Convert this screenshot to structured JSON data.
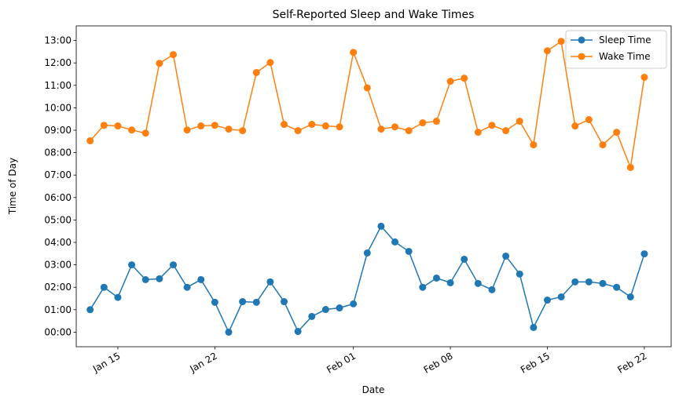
{
  "chart_data": {
    "type": "line",
    "title": "Self-Reported Sleep and Wake Times",
    "x_label": "Date",
    "y_label": "Time of Day",
    "x": [
      "Jan 13",
      "Jan 14",
      "Jan 15",
      "Jan 16",
      "Jan 17",
      "Jan 18",
      "Jan 19",
      "Jan 20",
      "Jan 21",
      "Jan 22",
      "Jan 23",
      "Jan 24",
      "Jan 25",
      "Jan 26",
      "Jan 27",
      "Jan 28",
      "Jan 29",
      "Jan 30",
      "Jan 31",
      "Feb 01",
      "Feb 02",
      "Feb 03",
      "Feb 04",
      "Feb 05",
      "Feb 06",
      "Feb 07",
      "Feb 08",
      "Feb 09",
      "Feb 10",
      "Feb 11",
      "Feb 12",
      "Feb 13",
      "Feb 14",
      "Feb 15",
      "Feb 16",
      "Feb 17",
      "Feb 18",
      "Feb 19",
      "Feb 20",
      "Feb 21",
      "Feb 22"
    ],
    "xticks": [
      "Jan 15",
      "Jan 22",
      "Feb 01",
      "Feb 08",
      "Feb 15",
      "Feb 22"
    ],
    "series": [
      {
        "name": "Sleep Time",
        "color": "#1f77b4",
        "values": [
          1.0,
          2.0,
          1.55,
          3.0,
          2.34,
          2.38,
          3.0,
          2.0,
          2.34,
          1.33,
          0.0,
          1.36,
          1.33,
          2.24,
          1.36,
          0.03,
          0.7,
          1.01,
          1.08,
          1.26,
          3.53,
          4.72,
          4.02,
          3.6,
          2.0,
          2.41,
          2.2,
          3.25,
          2.17,
          1.89,
          3.39,
          2.59,
          0.21,
          1.43,
          1.57,
          2.24,
          2.24,
          2.17,
          2.0,
          1.57,
          3.49
        ]
      },
      {
        "name": "Wake Time",
        "color": "#ff7f0e",
        "values": [
          8.53,
          9.22,
          9.19,
          9.01,
          8.87,
          11.98,
          12.37,
          9.01,
          9.19,
          9.22,
          9.05,
          8.98,
          11.57,
          12.02,
          9.26,
          8.98,
          9.26,
          9.19,
          9.15,
          12.47,
          10.89,
          9.05,
          9.15,
          8.98,
          9.33,
          9.4,
          11.18,
          11.32,
          8.91,
          9.22,
          8.98,
          9.4,
          8.35,
          12.54,
          12.96,
          9.19,
          9.47,
          8.35,
          8.91,
          7.34,
          11.36
        ]
      }
    ],
    "ylim": [
      -0.65,
      13.65
    ],
    "yticks": [
      {
        "value": 0,
        "label": "00:00"
      },
      {
        "value": 1,
        "label": "01:00"
      },
      {
        "value": 2,
        "label": "02:00"
      },
      {
        "value": 3,
        "label": "03:00"
      },
      {
        "value": 4,
        "label": "04:00"
      },
      {
        "value": 5,
        "label": "05:00"
      },
      {
        "value": 6,
        "label": "06:00"
      },
      {
        "value": 7,
        "label": "07:00"
      },
      {
        "value": 8,
        "label": "08:00"
      },
      {
        "value": 9,
        "label": "09:00"
      },
      {
        "value": 10,
        "label": "10:00"
      },
      {
        "value": 11,
        "label": "11:00"
      },
      {
        "value": 12,
        "label": "12:00"
      },
      {
        "value": 13,
        "label": "13:00"
      }
    ],
    "legend": "upper right",
    "grid": false
  }
}
